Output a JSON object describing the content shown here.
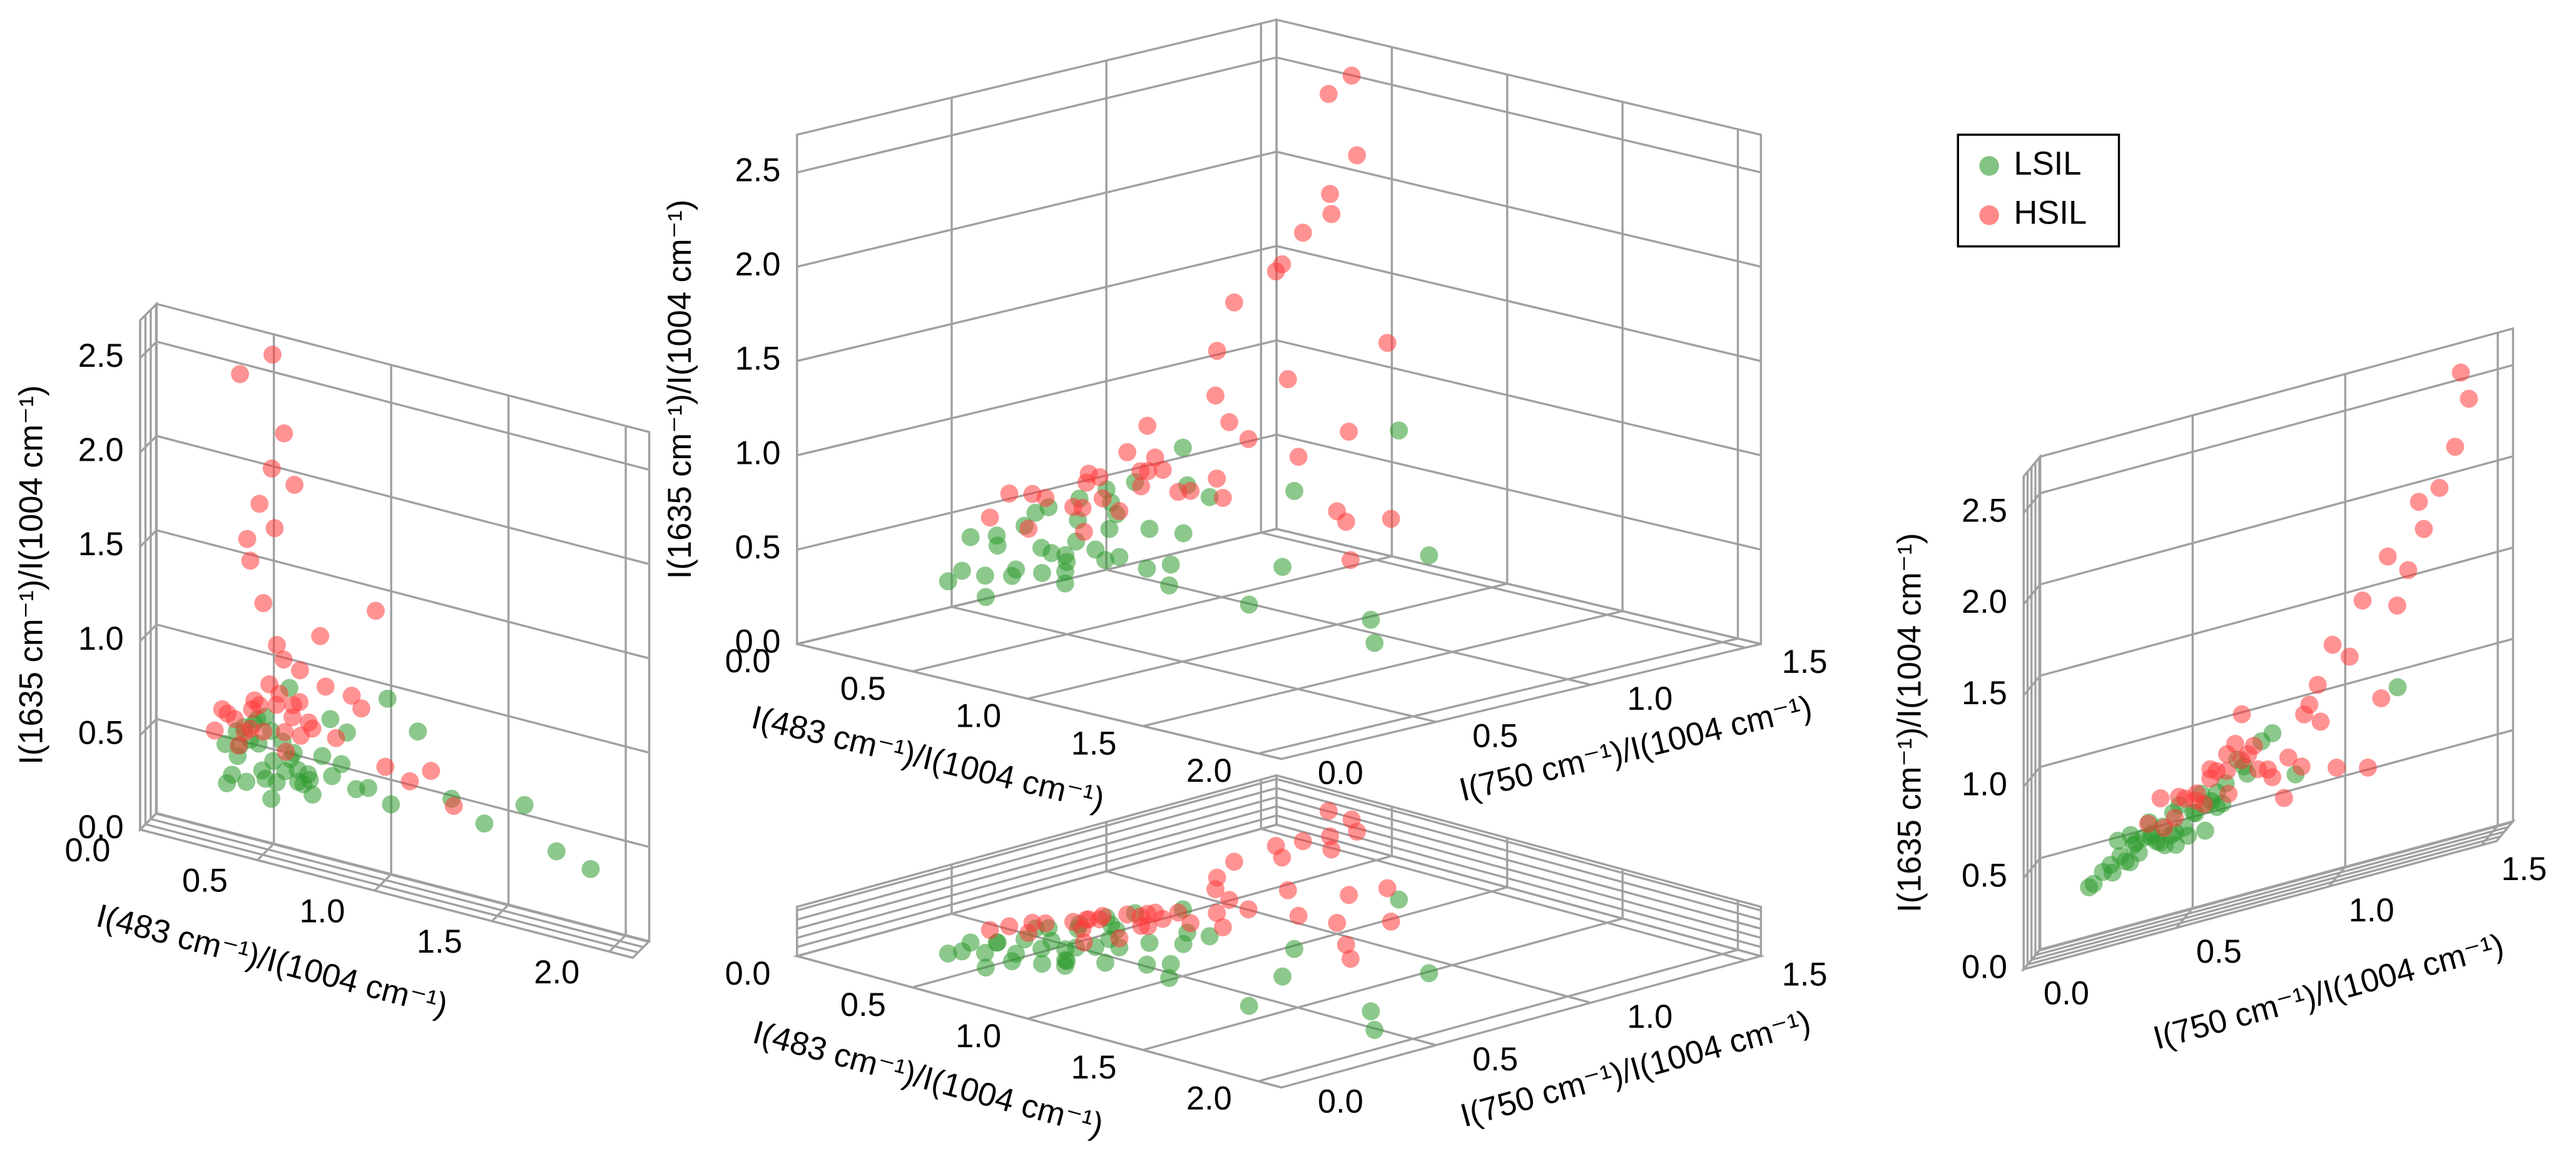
{
  "chart_data": {
    "type": "scatter3d",
    "xlabel": "I(483 cm⁻¹)/I(1004 cm⁻¹)",
    "ylabel": "I(750 cm⁻¹)/I(1004 cm⁻¹)",
    "zlabel": "I(1635 cm⁻¹)/I(1004 cm⁻¹)",
    "xlim": [
      0,
      2.1
    ],
    "xticks": [
      {
        "value": 0,
        "label": "0.0"
      },
      0.5,
      {
        "value": 1,
        "label": "1.0"
      },
      1.5,
      {
        "value": 2,
        "label": "2.0"
      }
    ],
    "ylim": [
      0,
      1.55
    ],
    "yticks": [
      {
        "value": 0,
        "label": "0.0"
      },
      0.5,
      {
        "value": 1,
        "label": "1.0"
      },
      1.5
    ],
    "zlim": [
      0,
      2.7
    ],
    "zticks": [
      {
        "value": 0,
        "label": "0.0"
      },
      0.5,
      {
        "value": 1,
        "label": "1.0"
      },
      1.5,
      {
        "value": 2,
        "label": "2.0"
      },
      2.5
    ],
    "grid": true,
    "legend": "upper right",
    "series": [
      {
        "name": "LSIL",
        "color": "#2e9a2e",
        "x": [
          0.35,
          0.4,
          0.45,
          0.5,
          0.38,
          0.42,
          0.55,
          0.6,
          0.48,
          0.52,
          0.58,
          0.65,
          0.7,
          0.44,
          0.47,
          0.62,
          0.68,
          0.75,
          0.8,
          0.85,
          0.9,
          0.36,
          0.41,
          0.53,
          0.57,
          0.63,
          0.72,
          0.78,
          0.95,
          1.05,
          1.15,
          1.3,
          1.45,
          1.6,
          1.75,
          1.9,
          0.5,
          0.55,
          0.6,
          0.66,
          0.39,
          0.46,
          0.83,
          1.0,
          0.7
        ],
        "y": [
          0.3,
          0.35,
          0.4,
          0.45,
          0.25,
          0.5,
          0.38,
          0.42,
          0.55,
          0.32,
          0.6,
          0.48,
          0.52,
          0.28,
          0.65,
          0.44,
          0.36,
          0.58,
          0.4,
          0.7,
          0.46,
          0.22,
          0.34,
          0.62,
          0.27,
          0.54,
          0.33,
          0.68,
          0.5,
          0.42,
          0.75,
          0.6,
          0.38,
          0.85,
          0.55,
          0.45,
          0.72,
          0.2,
          0.8,
          0.3,
          0.48,
          0.57,
          0.63,
          1.2,
          0.35
        ],
        "z": [
          0.55,
          0.5,
          0.6,
          0.45,
          0.4,
          0.65,
          0.52,
          0.48,
          0.58,
          0.42,
          0.62,
          0.5,
          0.46,
          0.38,
          0.7,
          0.55,
          0.44,
          0.6,
          0.52,
          0.75,
          0.48,
          0.35,
          0.56,
          0.66,
          0.42,
          0.58,
          0.4,
          0.8,
          0.5,
          0.45,
          0.85,
          0.55,
          0.48,
          0.6,
          0.42,
          0.38,
          0.72,
          0.33,
          0.9,
          0.45,
          0.62,
          0.68,
          0.58,
          0.95,
          0.5
        ]
      },
      {
        "name": "HSIL",
        "color": "#ff3b3b",
        "x": [
          0.3,
          0.35,
          0.4,
          0.45,
          0.5,
          0.55,
          0.6,
          0.65,
          0.7,
          0.38,
          0.42,
          0.48,
          0.52,
          0.58,
          0.62,
          0.68,
          0.75,
          0.8,
          0.9,
          1.0,
          1.1,
          1.2,
          1.3,
          0.33,
          0.44,
          0.56,
          0.64,
          0.72,
          0.85,
          0.95,
          0.4,
          0.45,
          0.5,
          0.55,
          0.36,
          0.42,
          0.48,
          0.52,
          0.6,
          0.46,
          0.54,
          0.58,
          0.66,
          0.5,
          0.62
        ],
        "y": [
          0.4,
          0.5,
          0.45,
          0.6,
          0.55,
          0.7,
          0.48,
          0.65,
          0.75,
          0.52,
          0.58,
          0.62,
          0.68,
          0.8,
          0.72,
          0.85,
          0.9,
          0.78,
          0.95,
          1.0,
          1.1,
          0.88,
          0.82,
          0.44,
          0.66,
          0.74,
          0.92,
          1.05,
          1.15,
          1.2,
          1.25,
          1.3,
          1.35,
          1.4,
          1.45,
          1.1,
          1.0,
          1.18,
          1.28,
          0.6,
          0.95,
          0.7,
          0.55,
          1.42,
          0.65
        ],
        "z": [
          0.6,
          0.7,
          0.55,
          0.75,
          0.65,
          0.8,
          0.58,
          0.85,
          0.72,
          0.68,
          0.62,
          0.78,
          0.9,
          0.66,
          0.82,
          0.74,
          0.95,
          0.7,
          0.88,
          0.6,
          0.55,
          0.65,
          0.5,
          0.72,
          0.64,
          0.86,
          1.0,
          1.2,
          0.92,
          1.4,
          1.6,
          1.8,
          2.0,
          2.2,
          2.45,
          1.5,
          1.3,
          1.7,
          1.95,
          0.8,
          1.1,
          1.05,
          0.68,
          2.6,
          0.76
        ]
      }
    ]
  }
}
